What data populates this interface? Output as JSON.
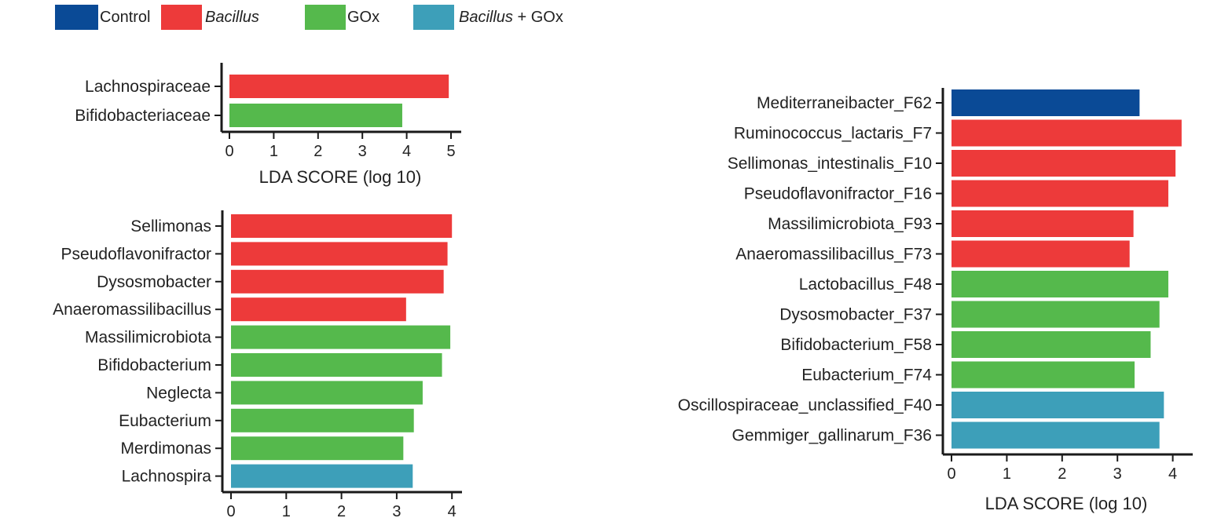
{
  "colors": {
    "control": "#0a4a96",
    "bacillus": "#ed3a3a",
    "gox": "#55b94c",
    "bacillus_gox": "#3d9fb9",
    "axis": "#1a1a1a",
    "text": "#222222"
  },
  "legend": [
    {
      "key": "control",
      "label_italic": "",
      "label_plain": "Control"
    },
    {
      "key": "bacillus",
      "label_italic": "Bacillus",
      "label_plain": ""
    },
    {
      "key": "gox",
      "label_italic": "",
      "label_plain": "GOx"
    },
    {
      "key": "bacillus_gox",
      "label_italic": "Bacillus",
      "label_plain": " + GOx"
    }
  ],
  "chart_data": [
    {
      "id": "family",
      "type": "bar",
      "orientation": "horizontal",
      "xlabel": "LDA SCORE (log 10)",
      "xlim": [
        0,
        5
      ],
      "xticks": [
        0,
        1,
        2,
        3,
        4,
        5
      ],
      "categories": [
        "Lachnospiraceae",
        "Bifidobacteriaceae"
      ],
      "values": [
        4.95,
        3.9
      ],
      "groups": [
        "bacillus",
        "gox"
      ]
    },
    {
      "id": "genus",
      "type": "bar",
      "orientation": "horizontal",
      "xlabel": "",
      "xlim": [
        0,
        4
      ],
      "xticks": [
        0,
        1,
        2,
        3,
        4
      ],
      "categories": [
        "Sellimonas",
        "Pseudoflavonifractor",
        "Dysosmobacter",
        "Anaeromassilibacillus",
        "Massilimicrobiota",
        "Bifidobacterium",
        "Neglecta",
        "Eubacterium",
        "Merdimonas",
        "Lachnospira"
      ],
      "values": [
        4.0,
        3.92,
        3.85,
        3.17,
        3.97,
        3.82,
        3.47,
        3.31,
        3.12,
        3.29
      ],
      "groups": [
        "bacillus",
        "bacillus",
        "bacillus",
        "bacillus",
        "gox",
        "gox",
        "gox",
        "gox",
        "gox",
        "bacillus_gox"
      ]
    },
    {
      "id": "species",
      "type": "bar",
      "orientation": "horizontal",
      "xlabel": "LDA SCORE (log 10)",
      "xlim": [
        0,
        4
      ],
      "xticks": [
        0,
        1,
        2,
        3,
        4
      ],
      "categories": [
        "Mediterraneibacter_F62",
        "Ruminococcus_lactaris_F7",
        "Sellimonas_intestinalis_F10",
        "Pseudoflavonifractor_F16",
        "Massilimicrobiota_F93",
        "Anaeromassilibacillus_F73",
        "Lactobacillus_F48",
        "Dysosmobacter_F37",
        "Bifidobacterium_F58",
        "Eubacterium_F74",
        "Oscillospiraceae_unclassified_F40",
        "Gemmiger_gallinarum_F36"
      ],
      "values": [
        3.4,
        4.16,
        4.05,
        3.92,
        3.29,
        3.22,
        3.92,
        3.76,
        3.6,
        3.31,
        3.84,
        3.76
      ],
      "groups": [
        "control",
        "bacillus",
        "bacillus",
        "bacillus",
        "bacillus",
        "bacillus",
        "gox",
        "gox",
        "gox",
        "gox",
        "bacillus_gox",
        "bacillus_gox"
      ]
    }
  ]
}
